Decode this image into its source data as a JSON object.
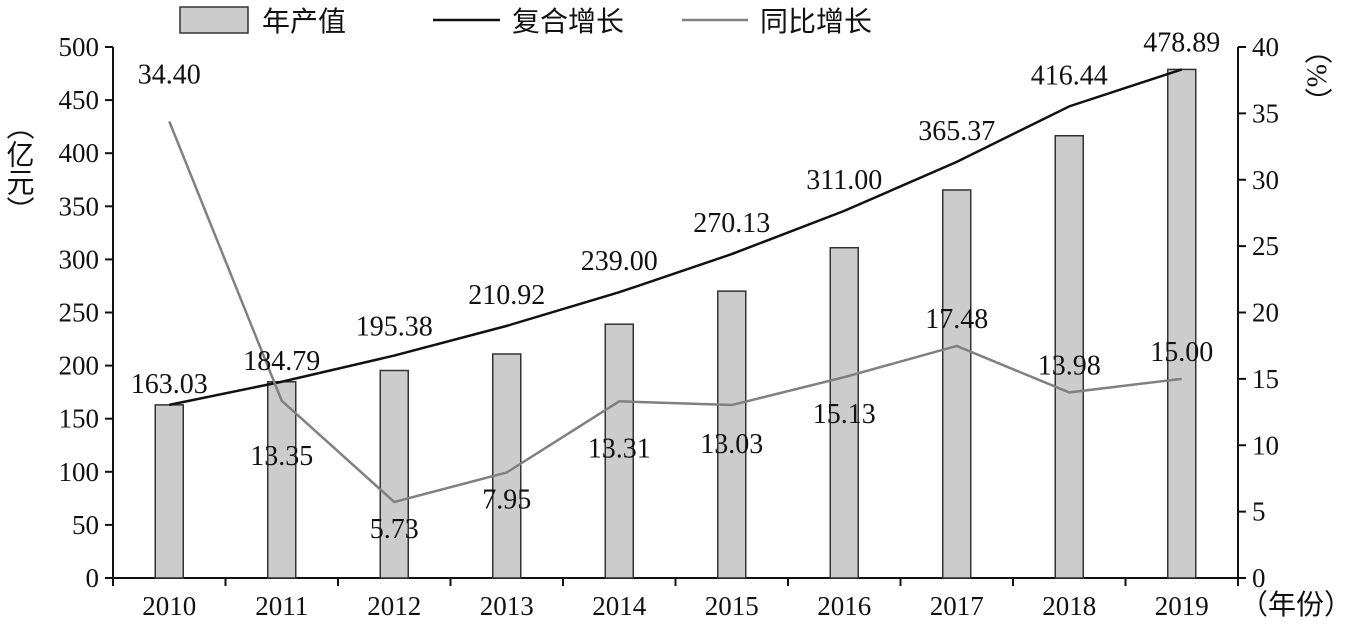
{
  "chart_data": {
    "type": "bar+line",
    "title": "",
    "categories": [
      "2010",
      "2011",
      "2012",
      "2013",
      "2014",
      "2015",
      "2016",
      "2017",
      "2018",
      "2019"
    ],
    "x_unit": "（年份）",
    "y_left": {
      "unit": "（亿元）",
      "range": [
        0,
        500
      ],
      "ticks": [
        "0",
        "50",
        "100",
        "150",
        "200",
        "250",
        "300",
        "350",
        "400",
        "450",
        "500"
      ]
    },
    "y_right": {
      "unit": "（%）",
      "range": [
        0,
        40
      ],
      "ticks": [
        "0",
        "5",
        "10",
        "15",
        "20",
        "25",
        "30",
        "35",
        "40"
      ]
    },
    "series": [
      {
        "name": "年产值",
        "type": "bar",
        "axis": "left",
        "color": "#cccccc",
        "values": [
          163.03,
          184.79,
          195.38,
          210.92,
          239.0,
          270.13,
          311.0,
          365.37,
          416.44,
          478.89
        ],
        "labels": [
          "163.03",
          "184.79",
          "195.38",
          "210.92",
          "239.00",
          "270.13",
          "311.00",
          "365.37",
          "416.44",
          "478.89"
        ]
      },
      {
        "name": "复合增长",
        "type": "line",
        "axis": "left",
        "color": "#111111",
        "values": [
          163.03,
          184.79,
          209.45,
          237.4,
          269.08,
          304.99,
          345.69,
          391.82,
          444.11,
          478.89
        ]
      },
      {
        "name": "同比增长",
        "type": "line",
        "axis": "right",
        "color": "#808080",
        "values": [
          34.4,
          13.35,
          5.73,
          7.95,
          13.31,
          13.03,
          15.13,
          17.48,
          13.98,
          15.0
        ],
        "labels": [
          "34.40",
          "13.35",
          "5.73",
          "7.95",
          "13.31",
          "13.03",
          "15.13",
          "17.48",
          "13.98",
          "15.00"
        ]
      }
    ],
    "legend_position": "top",
    "grid": false
  }
}
